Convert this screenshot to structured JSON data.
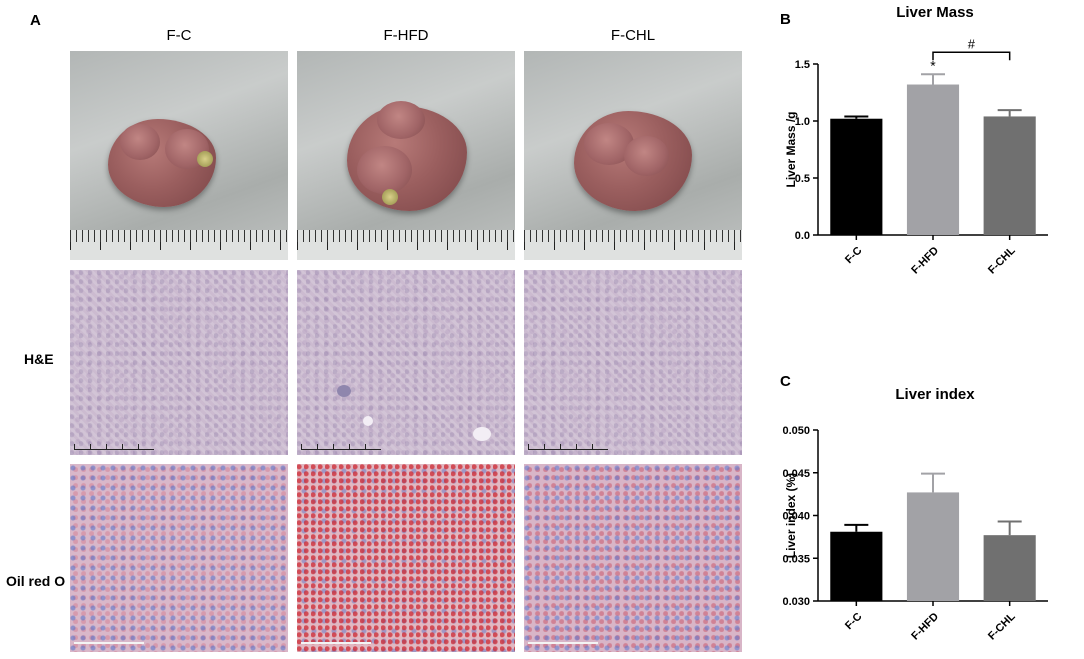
{
  "panel_labels": {
    "a": "A",
    "b": "B",
    "c": "C"
  },
  "column_labels": [
    "F-C",
    "F-HFD",
    "F-CHL"
  ],
  "row_labels": {
    "he": "H&E",
    "oil": "Oil red O"
  },
  "chart_data": [
    {
      "type": "bar",
      "title": "Liver Mass",
      "xlabel": "",
      "ylabel": "Liver Mass /g",
      "categories": [
        "F-C",
        "F-HFD",
        "F-CHL"
      ],
      "values": [
        1.02,
        1.32,
        1.04
      ],
      "errors": [
        0.02,
        0.09,
        0.055
      ],
      "colors": [
        "#000000",
        "#a2a2a6",
        "#707070"
      ],
      "ylim": [
        0.0,
        1.5
      ],
      "yticks": [
        "0.0",
        "0.5",
        "1.0",
        "1.5"
      ],
      "annotations": [
        {
          "text": "*",
          "category": "F-HFD"
        }
      ],
      "bracket": {
        "from": "F-HFD",
        "to": "F-CHL",
        "text": "#"
      }
    },
    {
      "type": "bar",
      "title": "Liver index",
      "xlabel": "",
      "ylabel": "Liver index (%)",
      "categories": [
        "F-C",
        "F-HFD",
        "F-CHL"
      ],
      "values": [
        0.0381,
        0.0427,
        0.0377
      ],
      "errors": [
        0.0008,
        0.0022,
        0.0016
      ],
      "colors": [
        "#000000",
        "#a2a2a6",
        "#707070"
      ],
      "ylim": [
        0.03,
        0.05
      ],
      "yticks": [
        "0.030",
        "0.035",
        "0.040",
        "0.045",
        "0.050"
      ]
    }
  ]
}
